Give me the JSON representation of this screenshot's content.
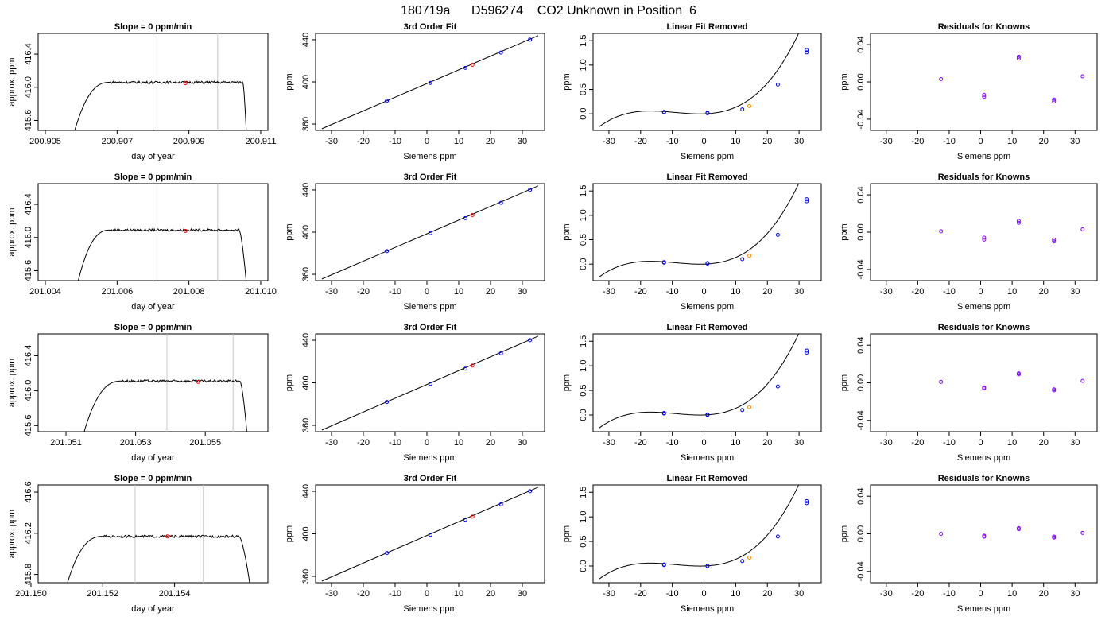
{
  "page_title": "180719a      D596274    CO2 Unknown in Position  6",
  "colors": {
    "known_point": "#0000ff",
    "known_point_residual": "#8800ff",
    "unknown_point_fit": "#ff0000",
    "unknown_point_linear": "#ff8800",
    "window_line": "#c8c8c8",
    "curve": "#000000"
  },
  "chart_data": [
    {
      "type": "line",
      "panel": "time-series",
      "row": 1,
      "title": "Slope =  0  ppm/min",
      "xlabel": "day of year",
      "ylabel": "approx. ppm",
      "xlim": [
        200.9048,
        200.9112
      ],
      "ylim": [
        415.48,
        416.65
      ],
      "xticks": [
        "200.905",
        "200.907",
        "200.909",
        "200.911"
      ],
      "xtick_values": [
        200.905,
        200.907,
        200.909,
        200.911
      ],
      "yticks": [
        "415.6",
        "416.0",
        "416.4"
      ],
      "ytick_values": [
        415.6,
        416.0,
        416.4
      ],
      "window": [
        200.908,
        200.9098
      ],
      "trace": {
        "start": 200.9058,
        "rise_end": 200.9068,
        "plateau_end": 200.9105,
        "end": 200.9106,
        "base": 415.45,
        "plateau": 416.06
      },
      "highlight": {
        "x": 200.9089,
        "y": 416.05
      }
    },
    {
      "type": "line",
      "panel": "fit",
      "row": 1,
      "title": "3rd Order Fit",
      "xlabel": "Siemens ppm",
      "ylabel": "ppm",
      "xlim": [
        -35,
        37
      ],
      "ylim": [
        354,
        446
      ],
      "xticks": [
        "-30",
        "-20",
        "-10",
        "0",
        "10",
        "20",
        "30"
      ],
      "xtick_values": [
        -30,
        -20,
        -10,
        0,
        10,
        20,
        30
      ],
      "yticks": [
        "360",
        "400",
        "440"
      ],
      "ytick_values": [
        360,
        400,
        440
      ],
      "line": {
        "x": [
          -33,
          35
        ],
        "y": [
          355.6,
          443.9
        ]
      },
      "knowns": {
        "x": [
          -12.6,
          1.1,
          12.1,
          23.3,
          32.4
        ],
        "y": [
          382.0,
          399.1,
          413.3,
          427.8,
          440.1
        ]
      },
      "unknown": {
        "x": 14.3,
        "y": 416.2
      }
    },
    {
      "type": "line",
      "panel": "linear-removed",
      "row": 1,
      "title": "Linear Fit Removed",
      "xlabel": "Siemens ppm",
      "ylabel": "ppm",
      "xlim": [
        -35,
        37
      ],
      "ylim": [
        -0.34,
        1.65
      ],
      "xticks": [
        "-30",
        "-20",
        "-10",
        "0",
        "10",
        "20",
        "30"
      ],
      "xtick_values": [
        -30,
        -20,
        -10,
        0,
        10,
        20,
        30
      ],
      "yticks": [
        "0.0",
        "0.5",
        "1.0",
        "1.5"
      ],
      "ytick_values": [
        0.0,
        0.5,
        1.0,
        1.5
      ],
      "curve": {
        "x_range": [
          -33,
          35
        ],
        "poly": [
          0.0,
          0.002,
          0.00085,
          3.12e-05
        ]
      },
      "knowns": {
        "x": [
          -12.6,
          -12.6,
          1.1,
          1.1,
          12.1,
          23.3,
          32.4,
          32.4
        ],
        "y": [
          0.03,
          0.04,
          0.01,
          0.02,
          0.09,
          0.6,
          1.26,
          1.31
        ]
      },
      "unknown": {
        "x": 14.3,
        "y": 0.16
      }
    },
    {
      "type": "scatter",
      "panel": "residuals",
      "row": 1,
      "title": "Residuals for Knowns",
      "xlabel": "Siemens ppm",
      "ylabel": "ppm",
      "xlim": [
        -35,
        37
      ],
      "ylim": [
        -0.052,
        0.052
      ],
      "xticks": [
        "-30",
        "-20",
        "-10",
        "0",
        "10",
        "20",
        "30"
      ],
      "xtick_values": [
        -30,
        -20,
        -10,
        0,
        10,
        20,
        30
      ],
      "yticks": [
        "-0.04",
        "0.00",
        "0.04"
      ],
      "ytick_values": [
        -0.04,
        0.0,
        0.04
      ],
      "points": {
        "x": [
          -12.6,
          1.1,
          1.1,
          12.1,
          12.1,
          23.3,
          23.3,
          32.4
        ],
        "y": [
          0.003,
          -0.014,
          -0.016,
          0.027,
          0.025,
          -0.019,
          -0.021,
          0.006
        ]
      }
    },
    {
      "type": "line",
      "panel": "time-series",
      "row": 2,
      "title": "Slope =  0  ppm/min",
      "xlabel": "day of year",
      "ylabel": "approx. ppm",
      "xlim": [
        201.0038,
        201.0102
      ],
      "ylim": [
        415.48,
        416.65
      ],
      "xticks": [
        "201.004",
        "201.006",
        "201.008",
        "201.010"
      ],
      "xtick_values": [
        201.004,
        201.006,
        201.008,
        201.01
      ],
      "yticks": [
        "415.6",
        "416.0",
        "416.4"
      ],
      "ytick_values": [
        415.6,
        416.0,
        416.4
      ],
      "window": [
        201.007,
        201.0088
      ],
      "trace": {
        "start": 201.0049,
        "rise_end": 201.0058,
        "plateau_end": 201.0094,
        "end": 201.0096,
        "base": 415.45,
        "plateau": 416.09
      },
      "highlight": {
        "x": 201.0079,
        "y": 416.08
      }
    },
    {
      "type": "line",
      "panel": "fit",
      "row": 2,
      "title": "3rd Order Fit",
      "xlabel": "Siemens ppm",
      "ylabel": "ppm",
      "xlim": [
        -35,
        37
      ],
      "ylim": [
        354,
        446
      ],
      "xticks": [
        "-30",
        "-20",
        "-10",
        "0",
        "10",
        "20",
        "30"
      ],
      "xtick_values": [
        -30,
        -20,
        -10,
        0,
        10,
        20,
        30
      ],
      "yticks": [
        "360",
        "400",
        "440"
      ],
      "ytick_values": [
        360,
        400,
        440
      ],
      "line": {
        "x": [
          -33,
          35
        ],
        "y": [
          355.6,
          443.9
        ]
      },
      "knowns": {
        "x": [
          -12.6,
          1.1,
          12.1,
          23.3,
          32.4
        ],
        "y": [
          382.0,
          399.1,
          413.3,
          427.8,
          440.1
        ]
      },
      "unknown": {
        "x": 14.3,
        "y": 416.2
      }
    },
    {
      "type": "line",
      "panel": "linear-removed",
      "row": 2,
      "title": "Linear Fit Removed",
      "xlabel": "Siemens ppm",
      "ylabel": "ppm",
      "xlim": [
        -35,
        37
      ],
      "ylim": [
        -0.34,
        1.65
      ],
      "xticks": [
        "-30",
        "-20",
        "-10",
        "0",
        "10",
        "20",
        "30"
      ],
      "xtick_values": [
        -30,
        -20,
        -10,
        0,
        10,
        20,
        30
      ],
      "yticks": [
        "0.0",
        "0.5",
        "1.0",
        "1.5"
      ],
      "ytick_values": [
        0.0,
        0.5,
        1.0,
        1.5
      ],
      "curve": {
        "x_range": [
          -33,
          35
        ],
        "poly": [
          0.0,
          0.002,
          0.00085,
          3.12e-05
        ]
      },
      "knowns": {
        "x": [
          -12.6,
          -12.6,
          1.1,
          1.1,
          12.1,
          23.3,
          32.4,
          32.4
        ],
        "y": [
          0.03,
          0.04,
          0.01,
          0.02,
          0.1,
          0.6,
          1.29,
          1.33
        ]
      },
      "unknown": {
        "x": 14.3,
        "y": 0.17
      }
    },
    {
      "type": "scatter",
      "panel": "residuals",
      "row": 2,
      "title": "Residuals for Knowns",
      "xlabel": "Siemens ppm",
      "ylabel": "ppm",
      "xlim": [
        -35,
        37
      ],
      "ylim": [
        -0.052,
        0.052
      ],
      "xticks": [
        "-30",
        "-20",
        "-10",
        "0",
        "10",
        "20",
        "30"
      ],
      "xtick_values": [
        -30,
        -20,
        -10,
        0,
        10,
        20,
        30
      ],
      "yticks": [
        "-0.04",
        "0.00",
        "0.04"
      ],
      "ytick_values": [
        -0.04,
        0.0,
        0.04
      ],
      "points": {
        "x": [
          -12.6,
          1.1,
          1.1,
          12.1,
          12.1,
          23.3,
          23.3,
          32.4
        ],
        "y": [
          0.001,
          -0.006,
          -0.008,
          0.012,
          0.01,
          -0.008,
          -0.01,
          0.003
        ]
      }
    },
    {
      "type": "line",
      "panel": "time-series",
      "row": 3,
      "title": "Slope =  0  ppm/min",
      "xlabel": "day of year",
      "ylabel": "approx. ppm",
      "xlim": [
        201.0502,
        201.0568
      ],
      "ylim": [
        415.53,
        416.65
      ],
      "xticks": [
        "201.051",
        "201.053",
        "201.055"
      ],
      "xtick_values": [
        201.051,
        201.053,
        201.055
      ],
      "yticks": [
        "415.6",
        "416.0",
        "416.4"
      ],
      "ytick_values": [
        415.6,
        416.0,
        416.4
      ],
      "window": [
        201.0539,
        201.0558
      ],
      "trace": {
        "start": 201.0515,
        "rise_end": 201.0526,
        "plateau_end": 201.056,
        "end": 201.0562,
        "base": 415.5,
        "plateau": 416.11
      },
      "highlight": {
        "x": 201.0548,
        "y": 416.1
      }
    },
    {
      "type": "line",
      "panel": "fit",
      "row": 3,
      "title": "3rd Order Fit",
      "xlabel": "Siemens ppm",
      "ylabel": "ppm",
      "xlim": [
        -35,
        37
      ],
      "ylim": [
        354,
        446
      ],
      "xticks": [
        "-30",
        "-20",
        "-10",
        "0",
        "10",
        "20",
        "30"
      ],
      "xtick_values": [
        -30,
        -20,
        -10,
        0,
        10,
        20,
        30
      ],
      "yticks": [
        "360",
        "400",
        "440"
      ],
      "ytick_values": [
        360,
        400,
        440
      ],
      "line": {
        "x": [
          -33,
          35
        ],
        "y": [
          355.6,
          443.9
        ]
      },
      "knowns": {
        "x": [
          -12.6,
          1.1,
          12.1,
          23.3,
          32.4
        ],
        "y": [
          382.0,
          399.1,
          413.3,
          427.8,
          440.1
        ]
      },
      "unknown": {
        "x": 14.3,
        "y": 416.2
      }
    },
    {
      "type": "line",
      "panel": "linear-removed",
      "row": 3,
      "title": "Linear Fit Removed",
      "xlabel": "Siemens ppm",
      "ylabel": "ppm",
      "xlim": [
        -35,
        37
      ],
      "ylim": [
        -0.34,
        1.65
      ],
      "xticks": [
        "-30",
        "-20",
        "-10",
        "0",
        "10",
        "20",
        "30"
      ],
      "xtick_values": [
        -30,
        -20,
        -10,
        0,
        10,
        20,
        30
      ],
      "yticks": [
        "0.0",
        "0.5",
        "1.0",
        "1.5"
      ],
      "ytick_values": [
        0.0,
        0.5,
        1.0,
        1.5
      ],
      "curve": {
        "x_range": [
          -33,
          35
        ],
        "poly": [
          0.0,
          0.002,
          0.00085,
          3.12e-05
        ]
      },
      "knowns": {
        "x": [
          -12.6,
          -12.6,
          1.1,
          1.1,
          12.1,
          23.3,
          32.4,
          32.4
        ],
        "y": [
          0.03,
          0.04,
          0.0,
          0.01,
          0.1,
          0.58,
          1.27,
          1.31
        ]
      },
      "unknown": {
        "x": 14.3,
        "y": 0.16
      }
    },
    {
      "type": "scatter",
      "panel": "residuals",
      "row": 3,
      "title": "Residuals for Knowns",
      "xlabel": "Siemens ppm",
      "ylabel": "ppm",
      "xlim": [
        -35,
        37
      ],
      "ylim": [
        -0.052,
        0.052
      ],
      "xticks": [
        "-30",
        "-20",
        "-10",
        "0",
        "10",
        "20",
        "30"
      ],
      "xtick_values": [
        -30,
        -20,
        -10,
        0,
        10,
        20,
        30
      ],
      "yticks": [
        "-0.04",
        "0.00",
        "0.04"
      ],
      "ytick_values": [
        -0.04,
        0.0,
        0.04
      ],
      "points": {
        "x": [
          -12.6,
          1.1,
          1.1,
          12.1,
          12.1,
          23.3,
          23.3,
          32.4
        ],
        "y": [
          0.001,
          -0.005,
          -0.006,
          0.01,
          0.009,
          -0.007,
          -0.008,
          0.002
        ]
      }
    },
    {
      "type": "line",
      "panel": "time-series",
      "row": 4,
      "title": "Slope =  0  ppm/min",
      "xlabel": "day of year",
      "ylabel": "approx. ppm",
      "xlim": [
        201.1502,
        201.1566
      ],
      "ylim": [
        415.72,
        416.67
      ],
      "xticks": [
        "201.150",
        "201.152",
        "201.154"
      ],
      "xtick_values": [
        201.15,
        201.152,
        201.154
      ],
      "yticks": [
        "415.8",
        "416.2",
        "416.6"
      ],
      "ytick_values": [
        415.8,
        416.2,
        416.6
      ],
      "window": [
        201.1529,
        201.1548
      ],
      "trace": {
        "start": 201.151,
        "rise_end": 201.152,
        "plateau_end": 201.1558,
        "end": 201.1561,
        "base": 415.7,
        "plateau": 416.17
      },
      "highlight": {
        "x": 201.1538,
        "y": 416.17
      }
    },
    {
      "type": "line",
      "panel": "fit",
      "row": 4,
      "title": "3rd Order Fit",
      "xlabel": "Siemens ppm",
      "ylabel": "ppm",
      "xlim": [
        -35,
        37
      ],
      "ylim": [
        354,
        446
      ],
      "xticks": [
        "-30",
        "-20",
        "-10",
        "0",
        "10",
        "20",
        "30"
      ],
      "xtick_values": [
        -30,
        -20,
        -10,
        0,
        10,
        20,
        30
      ],
      "yticks": [
        "360",
        "400",
        "440"
      ],
      "ytick_values": [
        360,
        400,
        440
      ],
      "line": {
        "x": [
          -33,
          35
        ],
        "y": [
          355.6,
          443.9
        ]
      },
      "knowns": {
        "x": [
          -12.6,
          1.1,
          12.1,
          23.3,
          32.4
        ],
        "y": [
          382.0,
          399.1,
          413.3,
          427.8,
          440.1
        ]
      },
      "unknown": {
        "x": 14.3,
        "y": 416.2
      }
    },
    {
      "type": "line",
      "panel": "linear-removed",
      "row": 4,
      "title": "Linear Fit Removed",
      "xlabel": "Siemens ppm",
      "ylabel": "ppm",
      "xlim": [
        -35,
        37
      ],
      "ylim": [
        -0.34,
        1.65
      ],
      "xticks": [
        "-30",
        "-20",
        "-10",
        "0",
        "10",
        "20",
        "30"
      ],
      "xtick_values": [
        -30,
        -20,
        -10,
        0,
        10,
        20,
        30
      ],
      "yticks": [
        "0.0",
        "0.5",
        "1.0",
        "1.5"
      ],
      "ytick_values": [
        0.0,
        0.5,
        1.0,
        1.5
      ],
      "curve": {
        "x_range": [
          -33,
          35
        ],
        "poly": [
          0.0,
          0.002,
          0.00085,
          3.12e-05
        ]
      },
      "knowns": {
        "x": [
          -12.6,
          -12.6,
          1.1,
          1.1,
          12.1,
          23.3,
          32.4,
          32.4
        ],
        "y": [
          0.02,
          0.03,
          0.0,
          0.0,
          0.1,
          0.6,
          1.28,
          1.32
        ]
      },
      "unknown": {
        "x": 14.3,
        "y": 0.17
      }
    },
    {
      "type": "scatter",
      "panel": "residuals",
      "row": 4,
      "title": "Residuals for Knowns",
      "xlabel": "Siemens ppm",
      "ylabel": "ppm",
      "xlim": [
        -35,
        37
      ],
      "ylim": [
        -0.052,
        0.052
      ],
      "xticks": [
        "-30",
        "-20",
        "-10",
        "0",
        "10",
        "20",
        "30"
      ],
      "xtick_values": [
        -30,
        -20,
        -10,
        0,
        10,
        20,
        30
      ],
      "yticks": [
        "-0.04",
        "0.00",
        "0.04"
      ],
      "ytick_values": [
        -0.04,
        0.0,
        0.04
      ],
      "points": {
        "x": [
          -12.6,
          1.1,
          1.1,
          12.1,
          12.1,
          23.3,
          23.3,
          32.4
        ],
        "y": [
          0.0,
          -0.002,
          -0.003,
          0.006,
          0.005,
          -0.003,
          -0.004,
          0.001
        ]
      }
    }
  ]
}
